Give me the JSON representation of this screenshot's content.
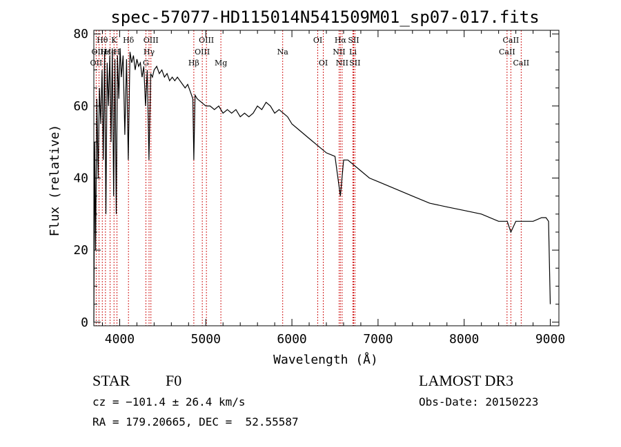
{
  "chart_data": {
    "type": "line",
    "title": "spec-57077-HD115014N541509M01_sp07-017.fits",
    "xlabel": "Wavelength (Å)",
    "ylabel": "Flux (relative)",
    "xlim": [
      3700,
      9100
    ],
    "ylim": [
      -1,
      81
    ],
    "xticks": [
      4000,
      5000,
      6000,
      7000,
      8000,
      9000
    ],
    "yticks": [
      0,
      20,
      40,
      60,
      80
    ],
    "series": [
      {
        "name": "spectrum",
        "x": [
          3700,
          3710,
          3720,
          3735,
          3750,
          3765,
          3780,
          3795,
          3810,
          3825,
          3840,
          3855,
          3870,
          3885,
          3900,
          3915,
          3930,
          3945,
          3960,
          3975,
          3990,
          4005,
          4020,
          4040,
          4060,
          4080,
          4100,
          4120,
          4140,
          4160,
          4180,
          4200,
          4220,
          4240,
          4260,
          4280,
          4300,
          4320,
          4340,
          4360,
          4380,
          4400,
          4430,
          4460,
          4490,
          4520,
          4550,
          4580,
          4610,
          4640,
          4670,
          4700,
          4730,
          4760,
          4790,
          4820,
          4850,
          4861,
          4875,
          4900,
          4950,
          5000,
          5050,
          5100,
          5150,
          5200,
          5250,
          5300,
          5350,
          5400,
          5450,
          5500,
          5550,
          5600,
          5650,
          5700,
          5750,
          5800,
          5850,
          5900,
          5950,
          6000,
          6100,
          6200,
          6300,
          6400,
          6500,
          6563,
          6600,
          6650,
          6700,
          6800,
          6900,
          7000,
          7200,
          7400,
          7600,
          7800,
          8000,
          8200,
          8400,
          8500,
          8542,
          8600,
          8662,
          8700,
          8800,
          8900,
          8950,
          8980,
          9000
        ],
        "y": [
          0,
          50,
          20,
          62,
          40,
          65,
          55,
          70,
          45,
          75,
          30,
          72,
          60,
          74,
          50,
          76,
          35,
          73,
          30,
          74,
          62,
          76,
          68,
          74,
          52,
          73,
          45,
          75,
          72,
          74,
          70,
          73,
          71,
          72,
          68,
          71,
          60,
          70,
          45,
          69,
          68,
          70,
          71,
          69,
          70,
          68,
          69,
          67,
          68,
          67,
          68,
          67,
          66,
          65,
          66,
          64,
          62,
          45,
          63,
          62,
          61,
          60,
          60,
          59,
          60,
          58,
          59,
          58,
          59,
          57,
          58,
          57,
          58,
          60,
          59,
          61,
          60,
          58,
          59,
          58,
          57,
          55,
          53,
          51,
          49,
          47,
          46,
          35,
          45,
          45,
          44,
          42,
          40,
          39,
          37,
          35,
          33,
          32,
          31,
          30,
          28,
          28,
          25,
          28,
          28,
          28,
          28,
          29,
          29,
          28,
          5
        ]
      }
    ],
    "lines": [
      {
        "label": "OII",
        "wavelength": 3727,
        "row": 3
      },
      {
        "label": "Hθ",
        "wavelength": 3798,
        "row": 1
      },
      {
        "label": "OIII",
        "wavelength": 3760,
        "row": 2
      },
      {
        "label": "Hε",
        "wavelength": 3835,
        "row": 2
      },
      {
        "label": "He",
        "wavelength": 3889,
        "row": 2
      },
      {
        "label": "K",
        "wavelength": 3934,
        "row": 1
      },
      {
        "label": "H",
        "wavelength": 3968,
        "row": 2
      },
      {
        "label": "Hδ",
        "wavelength": 4102,
        "row": 1
      },
      {
        "label": "G",
        "wavelength": 4304,
        "row": 3
      },
      {
        "label": "OIII",
        "wavelength": 4363,
        "row": 1
      },
      {
        "label": "Hγ",
        "wavelength": 4341,
        "row": 2
      },
      {
        "label": "Hβ",
        "wavelength": 4861,
        "row": 3
      },
      {
        "label": "OIII",
        "wavelength": 4959,
        "row": 2
      },
      {
        "label": "OIII",
        "wavelength": 5007,
        "row": 1
      },
      {
        "label": "Mg",
        "wavelength": 5175,
        "row": 3
      },
      {
        "label": "Na",
        "wavelength": 5893,
        "row": 2
      },
      {
        "label": "OI",
        "wavelength": 6300,
        "row": 1
      },
      {
        "label": "OI",
        "wavelength": 6364,
        "row": 3
      },
      {
        "label": "NII",
        "wavelength": 6548,
        "row": 2
      },
      {
        "label": "Hα",
        "wavelength": 6563,
        "row": 1
      },
      {
        "label": "NII",
        "wavelength": 6583,
        "row": 3
      },
      {
        "label": "Li",
        "wavelength": 6708,
        "row": 2
      },
      {
        "label": "SII",
        "wavelength": 6716,
        "row": 1
      },
      {
        "label": "SII",
        "wavelength": 6731,
        "row": 3
      },
      {
        "label": "CaII",
        "wavelength": 8498,
        "row": 2
      },
      {
        "label": "CaII",
        "wavelength": 8542,
        "row": 1
      },
      {
        "label": "CaII",
        "wavelength": 8662,
        "row": 3
      }
    ]
  },
  "footer": {
    "object_type": "STAR",
    "subclass": "F0",
    "survey": "LAMOST DR3",
    "cz": "cz = −101.4 ± 26.4 km/s",
    "obs_date": "Obs-Date: 20150223",
    "coords": "RA = 179.20665, DEC =  52.55587"
  },
  "colors": {
    "line_marker": "#cc0000",
    "spectrum": "#000000"
  }
}
